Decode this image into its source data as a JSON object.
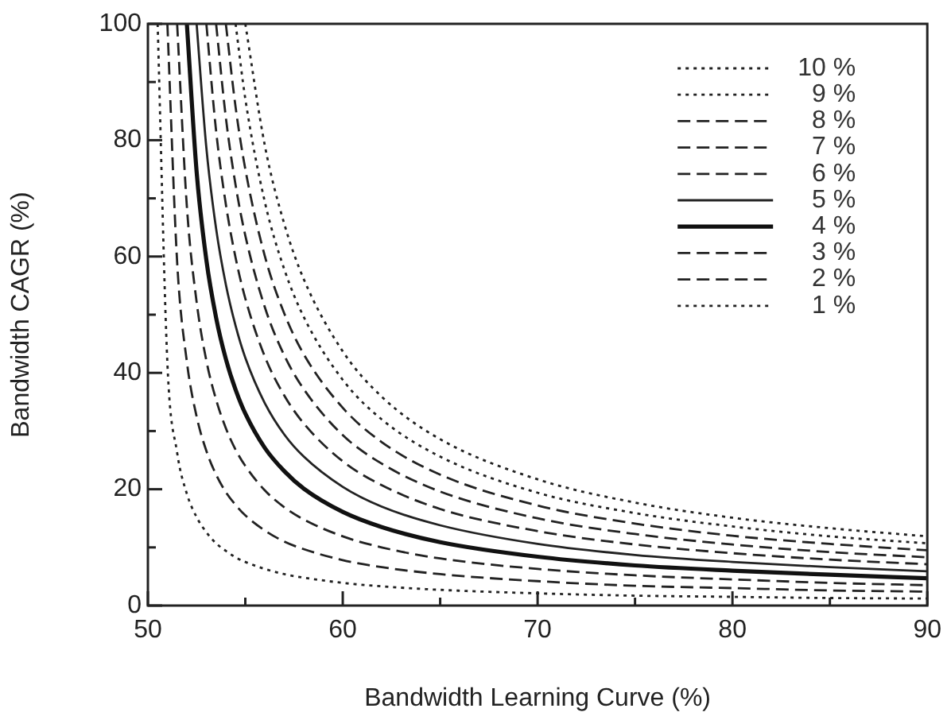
{
  "chart_data": {
    "type": "line",
    "xlabel": "Bandwidth Learning Curve (%)",
    "ylabel": "Bandwidth CAGR (%)",
    "xlim": [
      50,
      90
    ],
    "xticks": [
      50,
      {
        "value": 55,
        "label": null
      },
      60,
      {
        "value": 65,
        "label": null
      },
      70,
      {
        "value": 75,
        "label": null
      },
      80,
      {
        "value": 85,
        "label": null
      },
      90
    ],
    "ylim": [
      0,
      100
    ],
    "yticks": [
      0,
      {
        "value": 10,
        "label": null
      },
      20,
      {
        "value": 30,
        "label": null
      },
      40,
      {
        "value": 50,
        "label": null
      },
      60,
      {
        "value": 70,
        "label": null
      },
      80,
      {
        "value": 90,
        "label": null
      },
      100
    ],
    "grid": false,
    "legend": "top right",
    "marker": "none",
    "series": [
      {
        "name": "10 %",
        "color": "#222222",
        "line_style": "dotted",
        "x": [
          55,
          56,
          57,
          58,
          60,
          62,
          65,
          70,
          75,
          80,
          85,
          90
        ],
        "values": [
          100,
          79.1,
          65.6,
          56.1,
          43.7,
          35.9,
          28.6,
          21.7,
          17.7,
          15.1,
          13.3,
          11.9
        ]
      },
      {
        "name": "9 %",
        "color": "#222222",
        "line_style": "dotted",
        "x": [
          54.5,
          55,
          56,
          57,
          58,
          60,
          62,
          65,
          70,
          75,
          80,
          85,
          90
        ],
        "values": [
          100,
          87.1,
          69.4,
          57.8,
          49.6,
          38.8,
          32.0,
          25.6,
          19.4,
          15.9,
          13.6,
          11.9,
          10.7
        ]
      },
      {
        "name": "8 %",
        "color": "#222222",
        "line_style": "dashed",
        "x": [
          54,
          54.5,
          55,
          56,
          57,
          58,
          60,
          62,
          65,
          70,
          75,
          80,
          85,
          90
        ],
        "values": [
          100,
          85.7,
          75.0,
          60.1,
          50.2,
          43.2,
          34.0,
          28.1,
          22.5,
          17.2,
          14.1,
          12.0,
          10.6,
          9.5
        ]
      },
      {
        "name": "7 %",
        "color": "#222222",
        "line_style": "dashed",
        "x": [
          53.5,
          54,
          54.5,
          55,
          56,
          57,
          58,
          60,
          62,
          65,
          70,
          75,
          80,
          85,
          90
        ],
        "values": [
          100,
          83.9,
          72.3,
          63.6,
          51.3,
          43.0,
          37.2,
          29.3,
          24.4,
          19.6,
          15.0,
          12.3,
          10.5,
          9.2,
          8.3
        ]
      },
      {
        "name": "6 %",
        "color": "#222222",
        "line_style": "dashed",
        "x": [
          53,
          53.5,
          54,
          54.5,
          55,
          56,
          57,
          58,
          60,
          62,
          65,
          70,
          75,
          80,
          85,
          90
        ],
        "values": [
          100,
          81.6,
          69.0,
          59.8,
          52.8,
          42.8,
          36.1,
          31.3,
          24.8,
          20.7,
          16.6,
          12.8,
          10.5,
          9.0,
          7.9,
          7.1
        ]
      },
      {
        "name": "5 %",
        "color": "#222222",
        "line_style": "solid",
        "x": [
          52.5,
          53,
          53.5,
          54,
          54.5,
          55,
          56,
          57,
          58,
          60,
          62,
          65,
          70,
          75,
          80,
          85,
          90
        ],
        "values": [
          100,
          78.7,
          64.8,
          55.2,
          48.1,
          42.6,
          34.8,
          29.4,
          25.6,
          20.4,
          17.0,
          13.8,
          10.6,
          8.7,
          7.5,
          6.6,
          5.9
        ]
      },
      {
        "name": "4 %",
        "color": "#111111",
        "line_style": "solid",
        "x": [
          52,
          52.5,
          53,
          53.5,
          54,
          54.5,
          55,
          56,
          57,
          58,
          60,
          62,
          65,
          70,
          75,
          80,
          85,
          90
        ],
        "values": [
          100,
          74.6,
          59.4,
          49.5,
          42.4,
          37.1,
          33.0,
          27.1,
          23.1,
          20.1,
          16.1,
          13.5,
          10.9,
          8.4,
          6.9,
          6.0,
          5.3,
          4.7
        ]
      },
      {
        "name": "3 %",
        "color": "#222222",
        "line_style": "dashed",
        "x": [
          51.5,
          52,
          52.5,
          53,
          53.5,
          54,
          54.5,
          55,
          56,
          57,
          58,
          60,
          62,
          65,
          70,
          75,
          80,
          85,
          90
        ],
        "values": [
          100,
          68.6,
          52.2,
          42.1,
          35.4,
          30.5,
          26.8,
          24.0,
          19.8,
          16.9,
          14.8,
          11.9,
          10.0,
          8.1,
          6.3,
          5.2,
          4.5,
          3.9,
          3.5
        ]
      },
      {
        "name": "2 %",
        "color": "#222222",
        "line_style": "dashed",
        "x": [
          51,
          51.5,
          52,
          52.5,
          53,
          53.5,
          54,
          54.5,
          55,
          56,
          57,
          58,
          60,
          62,
          65,
          70,
          75,
          80,
          85,
          90
        ],
        "values": [
          100,
          59.1,
          41.9,
          32.5,
          26.6,
          22.5,
          19.5,
          17.3,
          15.5,
          12.9,
          11.0,
          9.7,
          7.8,
          6.6,
          5.4,
          4.2,
          3.4,
          3.0,
          2.6,
          2.4
        ]
      },
      {
        "name": "1 %",
        "color": "#222222",
        "line_style": "dotted",
        "x": [
          50.5,
          51,
          51.5,
          52,
          52.5,
          53,
          53.5,
          54,
          54.5,
          55,
          56,
          57,
          58,
          60,
          62,
          65,
          70,
          75,
          80,
          85,
          90
        ],
        "values": [
          100,
          41.7,
          26.3,
          19.2,
          15.2,
          12.6,
          10.7,
          9.4,
          8.3,
          7.5,
          6.3,
          5.4,
          4.8,
          3.9,
          3.3,
          2.7,
          2.1,
          1.7,
          1.5,
          1.3,
          1.2
        ]
      }
    ]
  }
}
